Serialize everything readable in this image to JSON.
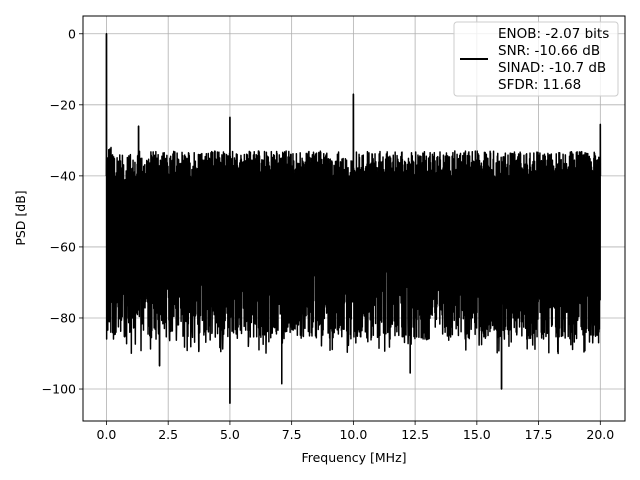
{
  "chart_data": {
    "type": "line",
    "title": "",
    "xlabel": "Frequency [MHz]",
    "ylabel": "PSD [dB]",
    "xlim": [
      -0.95,
      21.0
    ],
    "ylim": [
      -109,
      5
    ],
    "xticks": [
      0.0,
      2.5,
      5.0,
      7.5,
      10.0,
      12.5,
      15.0,
      17.5,
      20.0
    ],
    "xtick_labels": [
      "0.0",
      "2.5",
      "5.0",
      "7.5",
      "10.0",
      "12.5",
      "15.0",
      "17.5",
      "20.0"
    ],
    "yticks": [
      0,
      -20,
      -40,
      -60,
      -80,
      -100
    ],
    "ytick_labels": [
      "0",
      "−20",
      "−40",
      "−60",
      "−80",
      "−100"
    ],
    "grid": true,
    "legend_position": "top-right",
    "series": [
      {
        "color": "#000000",
        "noise_floor_upper_db": -36,
        "noise_floor_lower_db": -80,
        "spurs": [
          {
            "x": 0.0,
            "y": 0.0
          },
          {
            "x": 1.3,
            "y": -26.0
          },
          {
            "x": 5.0,
            "y": -23.5
          },
          {
            "x": 10.0,
            "y": -17.0
          },
          {
            "x": 15.0,
            "y": -35.5
          },
          {
            "x": 20.0,
            "y": -25.5
          }
        ],
        "deep_nulls": [
          {
            "x": 5.0,
            "y": -104.0
          },
          {
            "x": 7.1,
            "y": -98.5
          },
          {
            "x": 16.0,
            "y": -100.0
          },
          {
            "x": 2.15,
            "y": -93.5
          },
          {
            "x": 12.3,
            "y": -95.5
          }
        ]
      }
    ],
    "legend": {
      "lines": [
        "ENOB: -2.07 bits",
        "SNR: -10.66 dB",
        "SINAD: -10.7 dB",
        "SFDR: 11.68"
      ]
    }
  }
}
